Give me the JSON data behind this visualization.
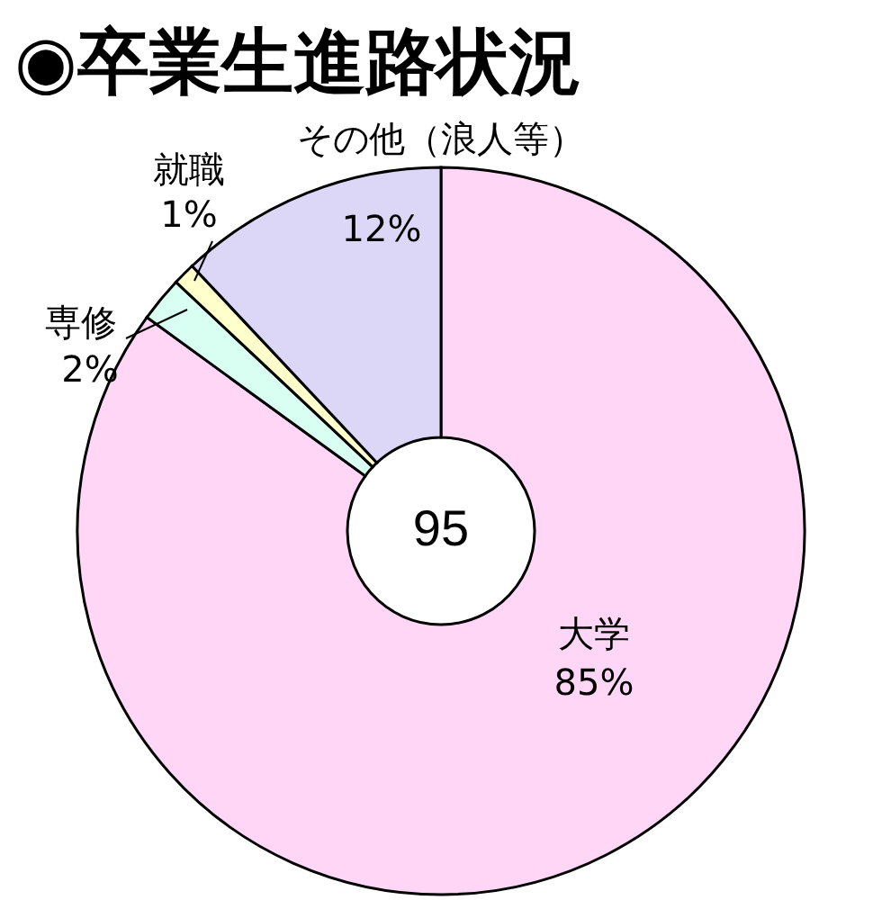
{
  "chart_data": {
    "type": "donut",
    "title": "◉卒業生進路状況",
    "categories": [
      "大学",
      "専修",
      "就職",
      "その他（浪人等）"
    ],
    "values": [
      85,
      2,
      1,
      12
    ],
    "value_labels": [
      "85%",
      "2%",
      "1%",
      "12%"
    ],
    "colors": [
      "#ffd6f5",
      "#d9fff2",
      "#ffffcc",
      "#dcd6f7"
    ],
    "annotations": [
      "95"
    ],
    "legend": false
  }
}
